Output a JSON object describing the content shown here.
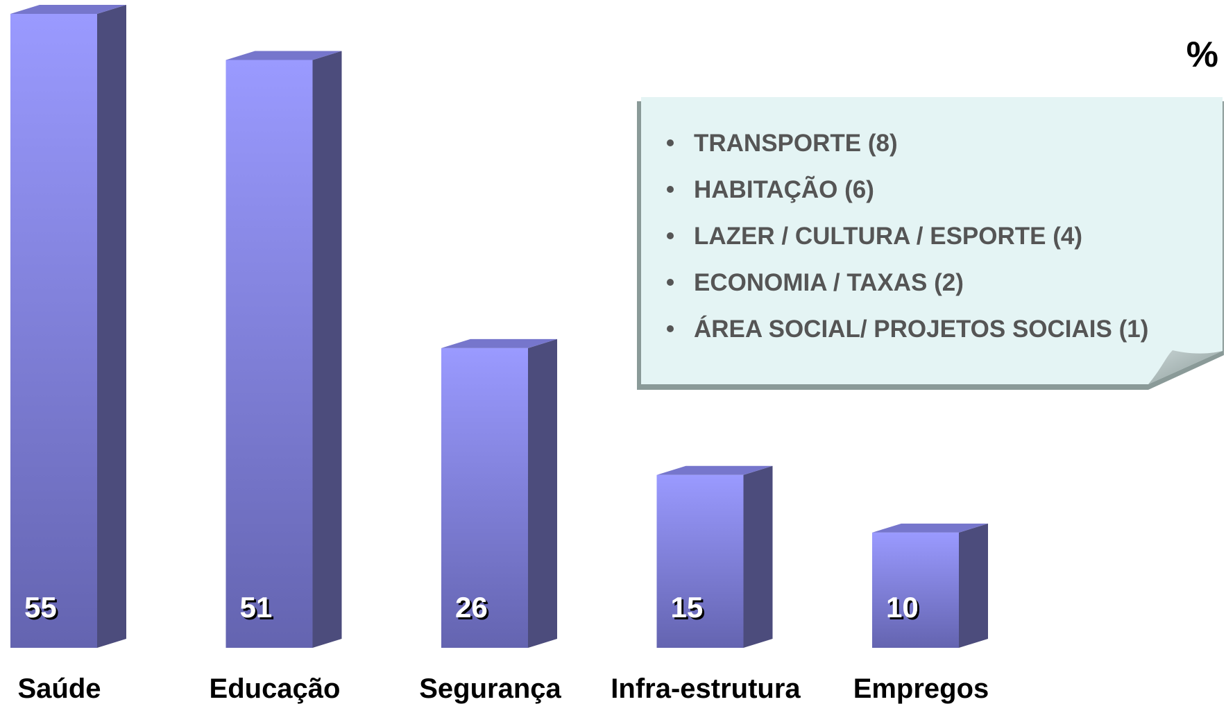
{
  "chart_data": {
    "type": "bar",
    "categories": [
      "Saúde",
      "Educação",
      "Segurança",
      "Infra-estrutura",
      "Empregos"
    ],
    "values": [
      55,
      51,
      26,
      15,
      10
    ],
    "unit": "%",
    "color": "#9a9aff",
    "annotations": [
      "TRANSPORTE (8)",
      "HABITAÇÃO (6)",
      "LAZER / CULTURA / ESPORTE (4)",
      "ECONOMIA / TAXAS (2)",
      "ÁREA SOCIAL/ PROJETOS SOCIAIS (1)"
    ]
  }
}
